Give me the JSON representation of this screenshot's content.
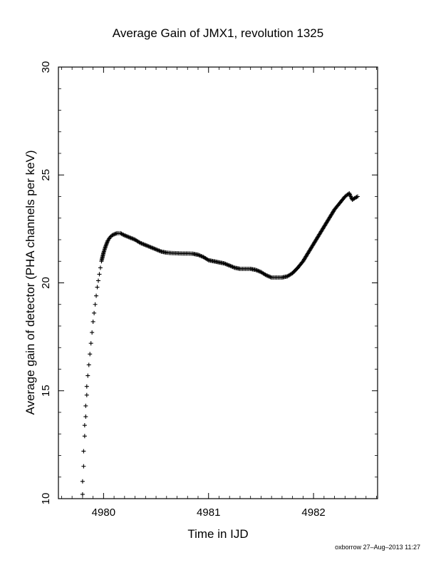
{
  "chart_data": {
    "type": "scatter",
    "marker": "plus",
    "marker_color": "#000000",
    "title": "Average Gain of JMX1, revolution 1325",
    "xlabel": "Time in IJD",
    "ylabel": "Average gain of detector (PHA channels per keV)",
    "xlim": [
      4979.57,
      4982.61
    ],
    "ylim": [
      10,
      30
    ],
    "xticks": [
      4980,
      4981,
      4982
    ],
    "yticks": [
      10,
      15,
      20,
      25,
      30
    ],
    "grid": false,
    "series": [
      {
        "x": [
          4979.8,
          4979.8,
          4979.81,
          4979.81,
          4979.82,
          4979.82,
          4979.83,
          4979.83,
          4979.84,
          4979.84,
          4979.85,
          4979.86,
          4979.87,
          4979.88,
          4979.89,
          4979.9,
          4979.91,
          4979.92,
          4979.93,
          4979.94,
          4979.95,
          4979.96,
          4979.97,
          4979.98,
          4979.99,
          4980.0,
          4980.02,
          4980.04,
          4980.06,
          4980.08,
          4980.1,
          4980.13,
          4980.16,
          4980.2,
          4980.25,
          4980.3,
          4980.35,
          4980.4,
          4980.45,
          4980.5,
          4980.55,
          4980.6,
          4980.65,
          4980.7,
          4980.75,
          4980.8,
          4980.85,
          4980.9,
          4980.95,
          4981.0,
          4981.05,
          4981.1,
          4981.15,
          4981.2,
          4981.25,
          4981.3,
          4981.35,
          4981.4,
          4981.45,
          4981.5,
          4981.55,
          4981.6,
          4981.65,
          4981.7,
          4981.75,
          4981.8,
          4981.85,
          4981.9,
          4981.95,
          4982.0,
          4982.05,
          4982.1,
          4982.15,
          4982.2,
          4982.25,
          4982.3,
          4982.34,
          4982.37,
          4982.4,
          4982.42
        ],
        "y": [
          10.2,
          10.8,
          11.5,
          12.2,
          12.9,
          13.4,
          13.8,
          14.3,
          14.8,
          15.2,
          15.7,
          16.2,
          16.7,
          17.2,
          17.7,
          18.2,
          18.6,
          19.0,
          19.4,
          19.8,
          20.1,
          20.4,
          20.7,
          21.0,
          21.2,
          21.4,
          21.7,
          21.95,
          22.1,
          22.2,
          22.25,
          22.3,
          22.3,
          22.2,
          22.1,
          22.0,
          21.85,
          21.75,
          21.65,
          21.55,
          21.45,
          21.4,
          21.38,
          21.37,
          21.36,
          21.36,
          21.35,
          21.3,
          21.2,
          21.05,
          21.0,
          20.95,
          20.9,
          20.8,
          20.7,
          20.65,
          20.65,
          20.65,
          20.6,
          20.5,
          20.35,
          20.25,
          20.25,
          20.25,
          20.3,
          20.45,
          20.7,
          21.0,
          21.4,
          21.8,
          22.2,
          22.6,
          23.0,
          23.4,
          23.7,
          24.0,
          24.15,
          23.85,
          23.95,
          24.0
        ]
      }
    ]
  },
  "footer": {
    "credit": "oxborrow 27–Aug–2013 11:27"
  }
}
